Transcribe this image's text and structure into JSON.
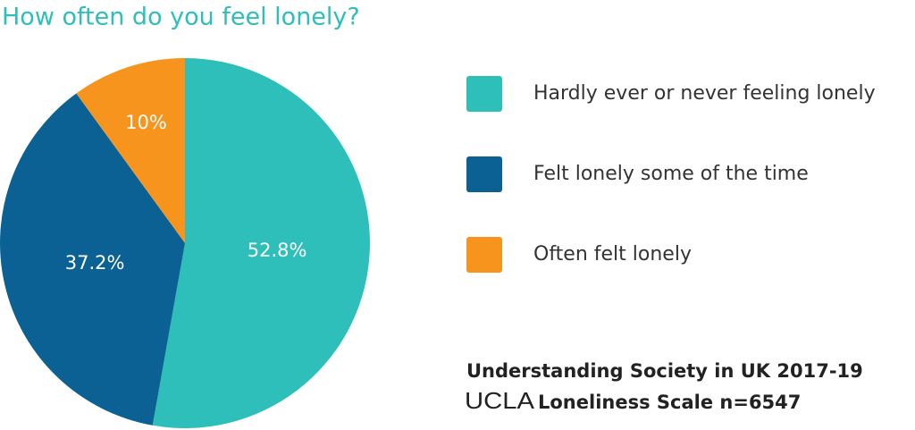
{
  "chart_data": {
    "type": "pie",
    "title": "How often do you feel lonely?",
    "categories": [
      "Hardly ever or never feeling lonely",
      "Felt lonely some of the time",
      "Often felt lonely"
    ],
    "values": [
      52.8,
      37.2,
      10
    ],
    "value_labels": [
      "52.8%",
      "37.2%",
      "10%"
    ],
    "colors": [
      "#2ebfbb",
      "#0b6193",
      "#f7941d"
    ],
    "source_line1": "Understanding Society in UK 2017-19",
    "source_logo": "UCLA",
    "source_line2": "Loneliness Scale n=6547"
  }
}
